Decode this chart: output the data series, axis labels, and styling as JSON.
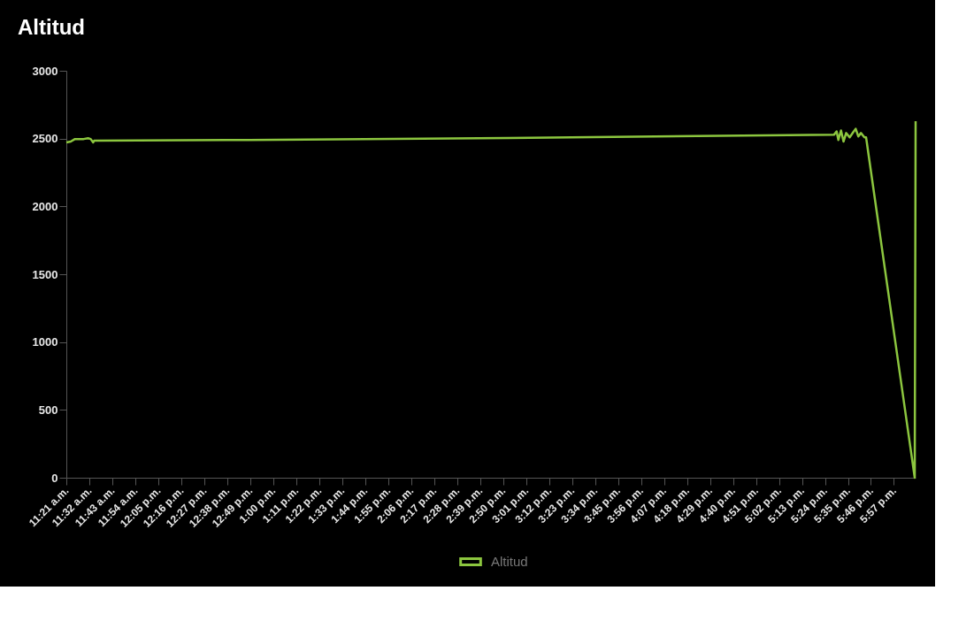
{
  "chart_data": {
    "type": "line",
    "title": "Altitud",
    "x": [
      11.35,
      11.385,
      11.419,
      11.488,
      11.523,
      11.544,
      11.564,
      11.571,
      12.803,
      14.878,
      17.472,
      17.493,
      17.507,
      17.528,
      17.548,
      17.569,
      17.597,
      17.625,
      17.645,
      17.666,
      17.687,
      17.715,
      17.728,
      18.116,
      18.123
    ],
    "series": [
      {
        "name": "Altitud",
        "color": "#8cc63f",
        "values": [
          2472,
          2478,
          2497,
          2497,
          2503,
          2497,
          2472,
          2484,
          2490,
          2505,
          2528,
          2553,
          2490,
          2560,
          2478,
          2541,
          2509,
          2547,
          2572,
          2516,
          2541,
          2509,
          2509,
          0,
          2629
        ]
      }
    ],
    "xlim": [
      11.35,
      18.123
    ],
    "xticks": [
      {
        "value": 11.35,
        "label": "11:21 a.m."
      },
      {
        "value": 11.5333,
        "label": "11:32 a.m."
      },
      {
        "value": 11.7167,
        "label": "11:43 a.m."
      },
      {
        "value": 11.9,
        "label": "11:54 a.m."
      },
      {
        "value": 12.0833,
        "label": "12:05 p.m."
      },
      {
        "value": 12.2667,
        "label": "12:16 p.m."
      },
      {
        "value": 12.45,
        "label": "12:27 p.m."
      },
      {
        "value": 12.6333,
        "label": "12:38 p.m."
      },
      {
        "value": 12.8167,
        "label": "12:49 p.m."
      },
      {
        "value": 13,
        "label": "1:00 p.m."
      },
      {
        "value": 13.1833,
        "label": "1:11 p.m."
      },
      {
        "value": 13.3667,
        "label": "1:22 p.m."
      },
      {
        "value": 13.55,
        "label": "1:33 p.m."
      },
      {
        "value": 13.7333,
        "label": "1:44 p.m."
      },
      {
        "value": 13.9167,
        "label": "1:55 p.m."
      },
      {
        "value": 14.1,
        "label": "2:06 p.m."
      },
      {
        "value": 14.2833,
        "label": "2:17 p.m."
      },
      {
        "value": 14.4667,
        "label": "2:28 p.m."
      },
      {
        "value": 14.65,
        "label": "2:39 p.m."
      },
      {
        "value": 14.8333,
        "label": "2:50 p.m."
      },
      {
        "value": 15.0167,
        "label": "3:01 p.m."
      },
      {
        "value": 15.2,
        "label": "3:12 p.m."
      },
      {
        "value": 15.3833,
        "label": "3:23 p.m."
      },
      {
        "value": 15.5667,
        "label": "3:34 p.m."
      },
      {
        "value": 15.75,
        "label": "3:45 p.m."
      },
      {
        "value": 15.9333,
        "label": "3:56 p.m."
      },
      {
        "value": 16.1167,
        "label": "4:07 p.m."
      },
      {
        "value": 16.3,
        "label": "4:18 p.m."
      },
      {
        "value": 16.4833,
        "label": "4:29 p.m."
      },
      {
        "value": 16.6667,
        "label": "4:40 p.m."
      },
      {
        "value": 16.85,
        "label": "4:51 p.m."
      },
      {
        "value": 17.0333,
        "label": "5:02 p.m."
      },
      {
        "value": 17.2167,
        "label": "5:13 p.m."
      },
      {
        "value": 17.4,
        "label": "5:24 p.m."
      },
      {
        "value": 17.5833,
        "label": "5:35 p.m."
      },
      {
        "value": 17.7667,
        "label": "5:46 p.m."
      },
      {
        "value": 17.95,
        "label": "5:57 p.m."
      }
    ],
    "ylim": [
      0,
      3000
    ],
    "yticks": [
      0,
      500,
      1000,
      1500,
      2000,
      2500,
      3000
    ],
    "grid": false,
    "legend": "bottom",
    "marker": "none",
    "line_style": "solid"
  }
}
